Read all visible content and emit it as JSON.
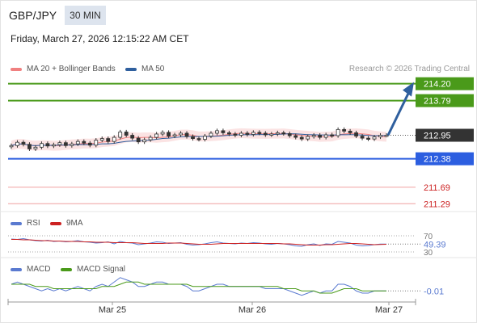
{
  "header": {
    "pair": "GBP/JPY",
    "timeframe": "30 MIN",
    "datetime": "Friday, March 27, 2026 12:15:22 AM CET"
  },
  "legend": {
    "ma20_label": "MA 20 + Bollinger Bands",
    "ma50_label": "MA 50",
    "credit": "Research © 2026 Trading Central"
  },
  "colors": {
    "resistance": "#4a9a1a",
    "support": "#2c5ee0",
    "minor_level": "#f0a0a0",
    "arrow": "#2f5f9e",
    "ma20": "#f08080",
    "ma50": "#2f5f9e",
    "candle_up": "#ffffff",
    "candle_down": "#333333",
    "rsi": "#5a7ad0",
    "rsi_ma": "#cc2222",
    "macd": "#5a7ad0",
    "macd_signal": "#4a9a1a"
  },
  "chart_data": [
    {
      "type": "candlestick",
      "title": "",
      "categories": [
        "Mar 25",
        "Mar 26",
        "Mar 27"
      ],
      "ylim": [
        211.1,
        214.35
      ],
      "levels": [
        {
          "label": "214.20",
          "value": 214.2,
          "kind": "resistance"
        },
        {
          "label": "213.79",
          "value": 213.79,
          "kind": "resistance"
        },
        {
          "label": "212.95",
          "value": 212.95,
          "kind": "current"
        },
        {
          "label": "212.38",
          "value": 212.38,
          "kind": "support"
        },
        {
          "label": "211.69",
          "value": 211.69,
          "kind": "minor"
        },
        {
          "label": "211.29",
          "value": 211.29,
          "kind": "minor"
        }
      ],
      "close_series": [
        212.7,
        212.78,
        212.73,
        212.62,
        212.66,
        212.75,
        212.69,
        212.72,
        212.77,
        212.7,
        212.74,
        212.8,
        212.76,
        212.71,
        212.83,
        212.87,
        212.8,
        212.9,
        213.03,
        212.95,
        212.88,
        212.79,
        212.84,
        212.9,
        212.98,
        213.02,
        212.93,
        212.96,
        213.0,
        212.92,
        212.87,
        212.85,
        212.93,
        213.0,
        213.06,
        213.01,
        212.98,
        212.95,
        213.0,
        212.97,
        213.02,
        213.0,
        212.96,
        212.98,
        213.01,
        212.99,
        212.94,
        212.9,
        212.86,
        212.92,
        212.95,
        212.9,
        212.96,
        212.94,
        213.09,
        213.05,
        213.01,
        212.93,
        212.88,
        212.86,
        212.91,
        212.95,
        212.95
      ]
    },
    {
      "type": "line",
      "title": "",
      "series": [
        {
          "name": "RSI"
        },
        {
          "name": "9MA"
        }
      ],
      "ylim": [
        30,
        70
      ],
      "ticks": [
        {
          "label": "70",
          "value": 70
        },
        {
          "label": "30",
          "value": 30
        }
      ],
      "current": {
        "label": "49.39",
        "value": 49.39
      },
      "rsi_values": [
        62,
        61,
        63,
        60,
        58,
        57,
        59,
        56,
        57,
        55,
        56,
        58,
        55,
        54,
        52,
        53,
        55,
        50,
        56,
        53,
        52,
        48,
        50,
        52,
        55,
        54,
        51,
        52,
        53,
        49,
        47,
        48,
        50,
        53,
        55,
        52,
        51,
        50,
        52,
        51,
        53,
        52,
        50,
        49,
        51,
        50,
        48,
        45,
        44,
        48,
        50,
        46,
        50,
        49,
        56,
        54,
        52,
        47,
        45,
        46,
        48,
        49.5,
        49.39
      ],
      "ma_values": [
        61,
        61,
        60,
        60,
        59,
        58,
        58,
        57,
        57,
        56,
        56,
        56,
        55,
        55,
        54,
        54,
        54,
        53,
        53,
        53,
        53,
        52,
        51,
        51,
        51,
        51,
        52,
        52,
        52,
        51,
        50,
        49,
        49,
        49,
        50,
        51,
        51,
        51,
        51,
        51,
        51,
        51,
        51,
        51,
        51,
        50,
        50,
        49,
        48,
        47,
        47,
        47,
        48,
        48,
        49,
        50,
        51,
        51,
        50,
        49,
        48,
        48.5,
        49
      ]
    },
    {
      "type": "line",
      "title": "",
      "series": [
        {
          "name": "MACD"
        },
        {
          "name": "MACD Signal"
        }
      ],
      "current": {
        "label": "-0.01",
        "value": -0.01
      },
      "ylim": [
        -0.06,
        0.06
      ],
      "macd_values": [
        0.02,
        0.03,
        0.02,
        0.01,
        0.0,
        -0.01,
        0.0,
        -0.01,
        0.0,
        -0.01,
        0.0,
        0.01,
        0.0,
        -0.01,
        0.01,
        0.02,
        0.01,
        0.03,
        0.05,
        0.04,
        0.03,
        0.01,
        0.01,
        0.02,
        0.03,
        0.03,
        0.02,
        0.02,
        0.02,
        0.01,
        -0.01,
        -0.01,
        0.0,
        0.01,
        0.02,
        0.02,
        0.01,
        0.01,
        0.01,
        0.01,
        0.01,
        0.01,
        0.0,
        0.0,
        0.0,
        0.0,
        -0.01,
        -0.02,
        -0.03,
        -0.02,
        -0.01,
        -0.02,
        -0.01,
        -0.01,
        0.02,
        0.02,
        0.01,
        -0.01,
        -0.02,
        -0.02,
        -0.01,
        -0.01,
        -0.01
      ],
      "signal_values": [
        0.02,
        0.02,
        0.02,
        0.02,
        0.01,
        0.01,
        0.01,
        0.0,
        0.0,
        0.0,
        0.0,
        0.0,
        0.0,
        0.0,
        0.0,
        0.01,
        0.01,
        0.01,
        0.02,
        0.03,
        0.03,
        0.03,
        0.02,
        0.02,
        0.02,
        0.02,
        0.02,
        0.02,
        0.02,
        0.02,
        0.01,
        0.01,
        0.01,
        0.01,
        0.01,
        0.01,
        0.01,
        0.01,
        0.01,
        0.01,
        0.01,
        0.01,
        0.01,
        0.01,
        0.01,
        0.0,
        0.0,
        0.0,
        -0.01,
        -0.01,
        -0.01,
        -0.02,
        -0.02,
        -0.02,
        -0.01,
        0.0,
        0.0,
        0.0,
        -0.01,
        -0.01,
        -0.01,
        -0.01,
        -0.01
      ]
    }
  ]
}
